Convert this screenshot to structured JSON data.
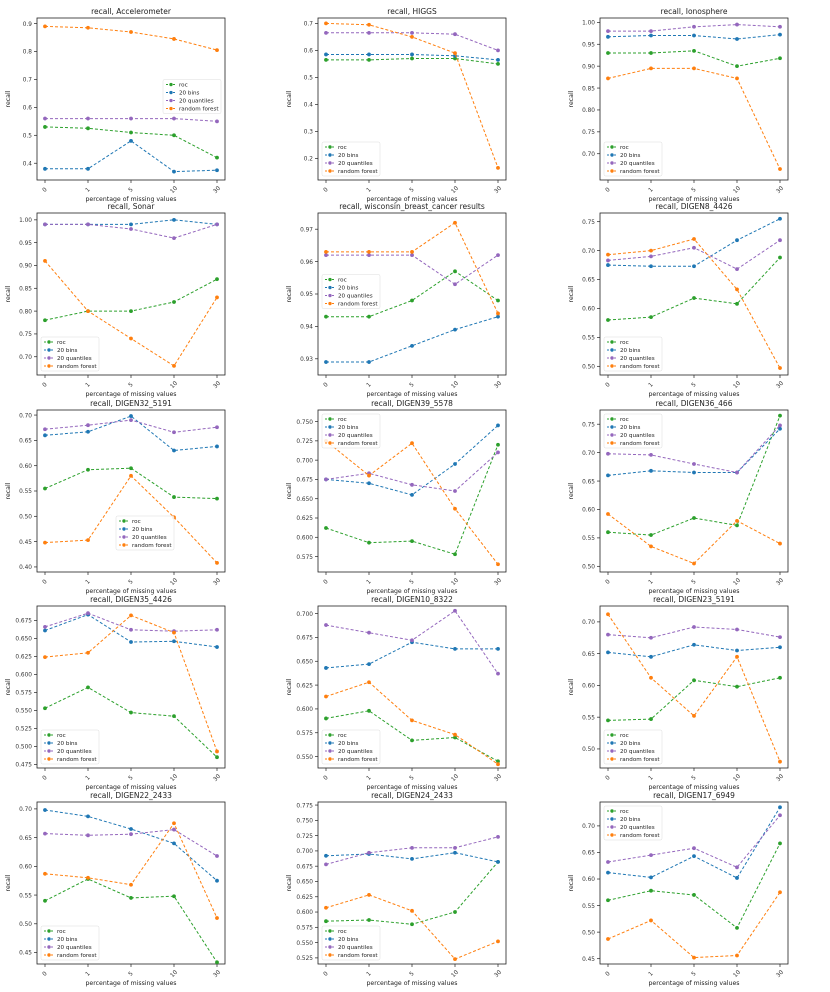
{
  "shared": {
    "x_labels": [
      "0",
      "1",
      "5",
      "10",
      "30"
    ],
    "xlabel": "percentage of missing values",
    "ylabel": "recall",
    "legend": [
      "roc",
      "20 bins",
      "20 quantiles",
      "random forest"
    ],
    "colors": {
      "roc": "#2ca02c",
      "bins": "#1f77b4",
      "quantiles": "#9467bd",
      "rf": "#ff7f0e"
    }
  },
  "chart_data": [
    {
      "type": "line",
      "title": "recall, Accelerometer",
      "ylim": [
        0.34,
        0.92
      ],
      "yticks": [
        "0.4",
        "0.5",
        "0.6",
        "0.7",
        "0.8",
        "0.9"
      ],
      "ytick_values": [
        0.4,
        0.5,
        0.6,
        0.7,
        0.8,
        0.9
      ],
      "legend_loc": "center-right",
      "categories": [
        "0",
        "1",
        "5",
        "10",
        "30"
      ],
      "series": [
        {
          "name": "roc",
          "values": [
            0.53,
            0.525,
            0.51,
            0.5,
            0.42
          ]
        },
        {
          "name": "20 bins",
          "values": [
            0.38,
            0.38,
            0.48,
            0.37,
            0.375
          ]
        },
        {
          "name": "20 quantiles",
          "values": [
            0.56,
            0.56,
            0.56,
            0.56,
            0.55
          ]
        },
        {
          "name": "random forest",
          "values": [
            0.89,
            0.885,
            0.87,
            0.845,
            0.805
          ]
        }
      ]
    },
    {
      "type": "line",
      "title": "recall, HIGGS",
      "ylim": [
        0.12,
        0.72
      ],
      "yticks": [
        "0.2",
        "0.3",
        "0.4",
        "0.5",
        "0.6",
        "0.7"
      ],
      "ytick_values": [
        0.2,
        0.3,
        0.4,
        0.5,
        0.6,
        0.7
      ],
      "legend_loc": "lower-left",
      "categories": [
        "0",
        "1",
        "5",
        "10",
        "30"
      ],
      "series": [
        {
          "name": "roc",
          "values": [
            0.565,
            0.565,
            0.57,
            0.57,
            0.55
          ]
        },
        {
          "name": "20 bins",
          "values": [
            0.585,
            0.585,
            0.585,
            0.58,
            0.565
          ]
        },
        {
          "name": "20 quantiles",
          "values": [
            0.665,
            0.665,
            0.665,
            0.66,
            0.6
          ]
        },
        {
          "name": "random forest",
          "values": [
            0.7,
            0.695,
            0.65,
            0.59,
            0.165
          ]
        }
      ]
    },
    {
      "type": "line",
      "title": "recall, Ionosphere",
      "ylim": [
        0.64,
        1.01
      ],
      "yticks": [
        "0.70",
        "0.75",
        "0.80",
        "0.85",
        "0.90",
        "0.95",
        "1.00"
      ],
      "ytick_values": [
        0.7,
        0.75,
        0.8,
        0.85,
        0.9,
        0.95,
        1.0
      ],
      "legend_loc": "lower-left",
      "categories": [
        "0",
        "1",
        "5",
        "10",
        "30"
      ],
      "series": [
        {
          "name": "roc",
          "values": [
            0.93,
            0.93,
            0.935,
            0.9,
            0.918
          ]
        },
        {
          "name": "20 bins",
          "values": [
            0.967,
            0.97,
            0.97,
            0.962,
            0.972
          ]
        },
        {
          "name": "20 quantiles",
          "values": [
            0.98,
            0.98,
            0.99,
            0.995,
            0.99
          ]
        },
        {
          "name": "random forest",
          "values": [
            0.872,
            0.895,
            0.895,
            0.872,
            0.665
          ]
        }
      ]
    },
    {
      "type": "line",
      "title": "recall, Sonar",
      "ylim": [
        0.66,
        1.015
      ],
      "yticks": [
        "0.70",
        "0.75",
        "0.80",
        "0.85",
        "0.90",
        "0.95",
        "1.00"
      ],
      "ytick_values": [
        0.7,
        0.75,
        0.8,
        0.85,
        0.9,
        0.95,
        1.0
      ],
      "legend_loc": "lower-left",
      "categories": [
        "0",
        "1",
        "5",
        "10",
        "30"
      ],
      "series": [
        {
          "name": "roc",
          "values": [
            0.78,
            0.8,
            0.8,
            0.82,
            0.87
          ]
        },
        {
          "name": "20 bins",
          "values": [
            0.99,
            0.99,
            0.99,
            1.0,
            0.99
          ]
        },
        {
          "name": "20 quantiles",
          "values": [
            0.99,
            0.99,
            0.98,
            0.96,
            0.99
          ]
        },
        {
          "name": "random forest",
          "values": [
            0.91,
            0.8,
            0.74,
            0.68,
            0.83
          ]
        }
      ]
    },
    {
      "type": "line",
      "title": "recall, wisconsin_breast_cancer results",
      "ylim": [
        0.925,
        0.975
      ],
      "yticks": [
        "0.93",
        "0.94",
        "0.95",
        "0.96",
        "0.97"
      ],
      "ytick_values": [
        0.93,
        0.94,
        0.95,
        0.96,
        0.97
      ],
      "legend_loc": "center-left",
      "categories": [
        "0",
        "1",
        "5",
        "10",
        "30"
      ],
      "series": [
        {
          "name": "roc",
          "values": [
            0.943,
            0.943,
            0.948,
            0.957,
            0.948
          ]
        },
        {
          "name": "20 bins",
          "values": [
            0.929,
            0.929,
            0.934,
            0.939,
            0.943
          ]
        },
        {
          "name": "20 quantiles",
          "values": [
            0.962,
            0.962,
            0.962,
            0.953,
            0.962
          ]
        },
        {
          "name": "random forest",
          "values": [
            0.963,
            0.963,
            0.963,
            0.972,
            0.944
          ]
        }
      ]
    },
    {
      "type": "line",
      "title": "recall, DIGEN8_4426",
      "ylim": [
        0.485,
        0.765
      ],
      "yticks": [
        "0.50",
        "0.55",
        "0.60",
        "0.65",
        "0.70",
        "0.75"
      ],
      "ytick_values": [
        0.5,
        0.55,
        0.6,
        0.65,
        0.7,
        0.75
      ],
      "legend_loc": "lower-left",
      "categories": [
        "0",
        "1",
        "5",
        "10",
        "30"
      ],
      "series": [
        {
          "name": "roc",
          "values": [
            0.58,
            0.585,
            0.618,
            0.608,
            0.688
          ]
        },
        {
          "name": "20 bins",
          "values": [
            0.675,
            0.673,
            0.673,
            0.718,
            0.755
          ]
        },
        {
          "name": "20 quantiles",
          "values": [
            0.683,
            0.69,
            0.705,
            0.668,
            0.718
          ]
        },
        {
          "name": "random forest",
          "values": [
            0.693,
            0.7,
            0.72,
            0.633,
            0.497
          ]
        }
      ]
    },
    {
      "type": "line",
      "title": "recall, DIGEN32_5191",
      "ylim": [
        0.39,
        0.71
      ],
      "yticks": [
        "0.40",
        "0.45",
        "0.50",
        "0.55",
        "0.60",
        "0.65",
        "0.70"
      ],
      "ytick_values": [
        0.4,
        0.45,
        0.5,
        0.55,
        0.6,
        0.65,
        0.7
      ],
      "legend_loc": "lower-center",
      "categories": [
        "0",
        "1",
        "5",
        "10",
        "30"
      ],
      "series": [
        {
          "name": "roc",
          "values": [
            0.555,
            0.592,
            0.595,
            0.538,
            0.535
          ]
        },
        {
          "name": "20 bins",
          "values": [
            0.66,
            0.667,
            0.698,
            0.63,
            0.638
          ]
        },
        {
          "name": "20 quantiles",
          "values": [
            0.672,
            0.68,
            0.69,
            0.666,
            0.676
          ]
        },
        {
          "name": "random forest",
          "values": [
            0.448,
            0.453,
            0.58,
            0.498,
            0.408
          ]
        }
      ]
    },
    {
      "type": "line",
      "title": "recall, DIGEN39_5578",
      "ylim": [
        0.555,
        0.765
      ],
      "yticks": [
        "0.575",
        "0.600",
        "0.625",
        "0.650",
        "0.675",
        "0.700",
        "0.725",
        "0.750"
      ],
      "ytick_values": [
        0.575,
        0.6,
        0.625,
        0.65,
        0.675,
        0.7,
        0.725,
        0.75
      ],
      "legend_loc": "top-left",
      "categories": [
        "0",
        "1",
        "5",
        "10",
        "30"
      ],
      "series": [
        {
          "name": "roc",
          "values": [
            0.612,
            0.593,
            0.595,
            0.578,
            0.72
          ]
        },
        {
          "name": "20 bins",
          "values": [
            0.675,
            0.67,
            0.655,
            0.695,
            0.745
          ]
        },
        {
          "name": "20 quantiles",
          "values": [
            0.675,
            0.683,
            0.668,
            0.66,
            0.71
          ]
        },
        {
          "name": "random forest",
          "values": [
            0.725,
            0.68,
            0.722,
            0.637,
            0.565
          ]
        }
      ]
    },
    {
      "type": "line",
      "title": "recall, DIGEN36_466",
      "ylim": [
        0.49,
        0.775
      ],
      "yticks": [
        "0.50",
        "0.55",
        "0.60",
        "0.65",
        "0.70",
        "0.75"
      ],
      "ytick_values": [
        0.5,
        0.55,
        0.6,
        0.65,
        0.7,
        0.75
      ],
      "legend_loc": "top-left",
      "categories": [
        "0",
        "1",
        "5",
        "10",
        "30"
      ],
      "series": [
        {
          "name": "roc",
          "values": [
            0.56,
            0.555,
            0.585,
            0.572,
            0.765
          ]
        },
        {
          "name": "20 bins",
          "values": [
            0.66,
            0.668,
            0.665,
            0.665,
            0.742
          ]
        },
        {
          "name": "20 quantiles",
          "values": [
            0.698,
            0.696,
            0.68,
            0.665,
            0.748
          ]
        },
        {
          "name": "random forest",
          "values": [
            0.592,
            0.535,
            0.505,
            0.58,
            0.54
          ]
        }
      ]
    },
    {
      "type": "line",
      "title": "recall, DIGEN35_4426",
      "ylim": [
        0.47,
        0.695
      ],
      "yticks": [
        "0.475",
        "0.500",
        "0.525",
        "0.550",
        "0.575",
        "0.600",
        "0.625",
        "0.650",
        "0.675"
      ],
      "ytick_values": [
        0.475,
        0.5,
        0.525,
        0.55,
        0.575,
        0.6,
        0.625,
        0.65,
        0.675
      ],
      "legend_loc": "lower-left",
      "categories": [
        "0",
        "1",
        "5",
        "10",
        "30"
      ],
      "series": [
        {
          "name": "roc",
          "values": [
            0.553,
            0.582,
            0.547,
            0.542,
            0.485
          ]
        },
        {
          "name": "20 bins",
          "values": [
            0.661,
            0.683,
            0.645,
            0.646,
            0.638
          ]
        },
        {
          "name": "20 quantiles",
          "values": [
            0.666,
            0.685,
            0.662,
            0.66,
            0.662
          ]
        },
        {
          "name": "random forest",
          "values": [
            0.624,
            0.63,
            0.682,
            0.658,
            0.493
          ]
        }
      ]
    },
    {
      "type": "line",
      "title": "recall, DIGEN10_8322",
      "ylim": [
        0.538,
        0.708
      ],
      "yticks": [
        "0.550",
        "0.575",
        "0.600",
        "0.625",
        "0.650",
        "0.675",
        "0.700"
      ],
      "ytick_values": [
        0.55,
        0.575,
        0.6,
        0.625,
        0.65,
        0.675,
        0.7
      ],
      "legend_loc": "lower-left",
      "categories": [
        "0",
        "1",
        "5",
        "10",
        "30"
      ],
      "series": [
        {
          "name": "roc",
          "values": [
            0.59,
            0.598,
            0.567,
            0.57,
            0.545
          ]
        },
        {
          "name": "20 bins",
          "values": [
            0.643,
            0.647,
            0.67,
            0.663,
            0.663
          ]
        },
        {
          "name": "20 quantiles",
          "values": [
            0.688,
            0.68,
            0.672,
            0.703,
            0.637
          ]
        },
        {
          "name": "random forest",
          "values": [
            0.613,
            0.628,
            0.588,
            0.573,
            0.542
          ]
        }
      ]
    },
    {
      "type": "line",
      "title": "recall, DIGEN23_5191",
      "ylim": [
        0.47,
        0.725
      ],
      "yticks": [
        "0.50",
        "0.55",
        "0.60",
        "0.65",
        "0.70"
      ],
      "ytick_values": [
        0.5,
        0.55,
        0.6,
        0.65,
        0.7
      ],
      "legend_loc": "lower-left",
      "categories": [
        "0",
        "1",
        "5",
        "10",
        "30"
      ],
      "series": [
        {
          "name": "roc",
          "values": [
            0.545,
            0.547,
            0.608,
            0.598,
            0.612
          ]
        },
        {
          "name": "20 bins",
          "values": [
            0.652,
            0.645,
            0.664,
            0.655,
            0.66
          ]
        },
        {
          "name": "20 quantiles",
          "values": [
            0.68,
            0.675,
            0.692,
            0.688,
            0.676
          ]
        },
        {
          "name": "random forest",
          "values": [
            0.712,
            0.612,
            0.552,
            0.645,
            0.48
          ]
        }
      ]
    },
    {
      "type": "line",
      "title": "recall, DIGEN22_2433",
      "ylim": [
        0.43,
        0.712
      ],
      "yticks": [
        "0.45",
        "0.50",
        "0.55",
        "0.60",
        "0.65",
        "0.70"
      ],
      "ytick_values": [
        0.45,
        0.5,
        0.55,
        0.6,
        0.65,
        0.7
      ],
      "legend_loc": "lower-left",
      "categories": [
        "0",
        "1",
        "5",
        "10",
        "30"
      ],
      "series": [
        {
          "name": "roc",
          "values": [
            0.54,
            0.578,
            0.545,
            0.548,
            0.433
          ]
        },
        {
          "name": "20 bins",
          "values": [
            0.698,
            0.687,
            0.665,
            0.64,
            0.575
          ]
        },
        {
          "name": "20 quantiles",
          "values": [
            0.657,
            0.654,
            0.656,
            0.664,
            0.618
          ]
        },
        {
          "name": "random forest",
          "values": [
            0.587,
            0.58,
            0.568,
            0.675,
            0.51
          ]
        }
      ]
    },
    {
      "type": "line",
      "title": "recall, DIGEN24_2433",
      "ylim": [
        0.515,
        0.78
      ],
      "yticks": [
        "0.525",
        "0.550",
        "0.575",
        "0.600",
        "0.625",
        "0.650",
        "0.675",
        "0.700",
        "0.725",
        "0.750",
        "0.775"
      ],
      "ytick_values": [
        0.525,
        0.55,
        0.575,
        0.6,
        0.625,
        0.65,
        0.675,
        0.7,
        0.725,
        0.75,
        0.775
      ],
      "legend_loc": "lower-left",
      "categories": [
        "0",
        "1",
        "5",
        "10",
        "30"
      ],
      "series": [
        {
          "name": "roc",
          "values": [
            0.585,
            0.587,
            0.58,
            0.6,
            0.682
          ]
        },
        {
          "name": "20 bins",
          "values": [
            0.692,
            0.695,
            0.687,
            0.697,
            0.682
          ]
        },
        {
          "name": "20 quantiles",
          "values": [
            0.678,
            0.697,
            0.705,
            0.705,
            0.723
          ]
        },
        {
          "name": "random forest",
          "values": [
            0.607,
            0.628,
            0.602,
            0.523,
            0.552
          ]
        }
      ]
    },
    {
      "type": "line",
      "title": "recall, DIGEN17_6949",
      "ylim": [
        0.44,
        0.745
      ],
      "yticks": [
        "0.45",
        "0.50",
        "0.55",
        "0.60",
        "0.65",
        "0.70"
      ],
      "ytick_values": [
        0.45,
        0.5,
        0.55,
        0.6,
        0.65,
        0.7
      ],
      "legend_loc": "top-left",
      "categories": [
        "0",
        "1",
        "5",
        "10",
        "30"
      ],
      "series": [
        {
          "name": "roc",
          "values": [
            0.56,
            0.578,
            0.57,
            0.508,
            0.667
          ]
        },
        {
          "name": "20 bins",
          "values": [
            0.612,
            0.603,
            0.643,
            0.602,
            0.735
          ]
        },
        {
          "name": "20 quantiles",
          "values": [
            0.632,
            0.645,
            0.658,
            0.622,
            0.72
          ]
        },
        {
          "name": "random forest",
          "values": [
            0.487,
            0.522,
            0.452,
            0.456,
            0.575
          ]
        }
      ]
    }
  ]
}
